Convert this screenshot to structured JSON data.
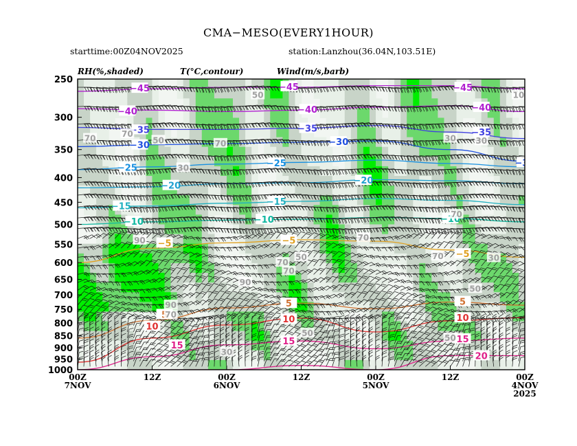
{
  "header": {
    "title": "CMA−MESO(EVERY1HOUR)",
    "starttime": "starttime:00Z04NOV2025",
    "station": "station:Lanzhou(36.04N,103.51E)"
  },
  "chart_data": {
    "type": "heatmap",
    "legend": {
      "rh": "RH(%,shaded)",
      "temp": "T(°C,contour)",
      "wind": "Wind(m/s,barb)"
    },
    "y_axis": {
      "scale": "log-pressure",
      "ylim": [
        1000,
        250
      ],
      "ticks": [
        "250",
        "300",
        "350",
        "400",
        "450",
        "500",
        "550",
        "600",
        "650",
        "700",
        "750",
        "800",
        "850",
        "900",
        "950",
        "1000"
      ]
    },
    "x_axis": {
      "direction": "time decreasing to the right",
      "range_hours": [
        72,
        0
      ],
      "ticks": [
        {
          "h": 72,
          "line1": "00Z",
          "line2": "7NOV",
          "line3": ""
        },
        {
          "h": 60,
          "line1": "12Z",
          "line2": "",
          "line3": ""
        },
        {
          "h": 48,
          "line1": "00Z",
          "line2": "6NOV",
          "line3": ""
        },
        {
          "h": 36,
          "line1": "12Z",
          "line2": "",
          "line3": ""
        },
        {
          "h": 24,
          "line1": "00Z",
          "line2": "5NOV",
          "line3": ""
        },
        {
          "h": 12,
          "line1": "12Z",
          "line2": "",
          "line3": ""
        },
        {
          "h": 0,
          "line1": "00Z",
          "line2": "4NOV",
          "line3": "2025"
        }
      ]
    },
    "rh_shading": {
      "levels": [
        30,
        50,
        70,
        90
      ],
      "colors": [
        "#ffffff",
        "#e8f0e8",
        "#c8d4c8",
        "#6cd86c",
        "#00ee00"
      ]
    },
    "temperature_contours": [
      {
        "value": -45,
        "color": "#b020d0",
        "p": [
          265,
          262,
          260,
          260,
          258,
          258,
          262
        ],
        "labels": [
          {
            "h": 62,
            "p": 261
          },
          {
            "h": 38,
            "p": 259
          },
          {
            "h": 10,
            "p": 260
          }
        ]
      },
      {
        "value": -40,
        "color": "#b020d0",
        "p": [
          288,
          290,
          292,
          290,
          286,
          284,
          292
        ],
        "labels": [
          {
            "h": 64,
            "p": 291
          },
          {
            "h": 35,
            "p": 289
          },
          {
            "h": 7,
            "p": 286
          }
        ]
      },
      {
        "value": -35,
        "color": "#4040e0",
        "p": [
          315,
          318,
          318,
          316,
          312,
          322,
          332
        ],
        "labels": [
          {
            "h": 62,
            "p": 318
          },
          {
            "h": 35,
            "p": 316
          },
          {
            "h": 7,
            "p": 322
          }
        ]
      },
      {
        "value": -30,
        "color": "#2050e0",
        "p": [
          345,
          342,
          340,
          338,
          336,
          350,
          370
        ],
        "labels": [
          {
            "h": 62,
            "p": 342
          },
          {
            "h": 30,
            "p": 337
          },
          {
            "h": 0,
            "p": 372
          }
        ]
      },
      {
        "value": -25,
        "color": "#1890e0",
        "p": [
          385,
          380,
          375,
          372,
          368,
          374,
          380
        ],
        "labels": [
          {
            "h": 64,
            "p": 381
          },
          {
            "h": 40,
            "p": 373
          }
        ]
      },
      {
        "value": -20,
        "color": "#20a0d0",
        "p": [
          420,
          418,
          412,
          410,
          404,
          406,
          412
        ],
        "labels": [
          {
            "h": 57,
            "p": 415
          },
          {
            "h": 26,
            "p": 405
          }
        ]
      },
      {
        "value": -15,
        "color": "#20b0c0",
        "p": [
          462,
          458,
          452,
          448,
          442,
          446,
          455
        ],
        "labels": [
          {
            "h": 65,
            "p": 458
          },
          {
            "h": 40,
            "p": 448
          }
        ]
      },
      {
        "value": -10,
        "color": "#10b8a0",
        "p": [
          500,
          494,
          490,
          488,
          484,
          486,
          494
        ],
        "labels": [
          {
            "h": 63,
            "p": 493
          },
          {
            "h": 42,
            "p": 488
          },
          {
            "h": 12,
            "p": 486
          }
        ]
      },
      {
        "value": -5,
        "color": "#e0a020",
        "p": [
          600,
          560,
          546,
          538,
          542,
          565,
          585
        ],
        "labels": [
          {
            "h": 58,
            "p": 546
          },
          {
            "h": 38,
            "p": 539
          },
          {
            "h": 10,
            "p": 575
          }
        ]
      },
      {
        "value": 5,
        "color": "#d07030",
        "p": [
          860,
          790,
          745,
          728,
          748,
          724,
          735
        ],
        "labels": [
          {
            "h": 58,
            "p": 768
          },
          {
            "h": 38,
            "p": 728
          },
          {
            "h": 10,
            "p": 722
          }
        ]
      },
      {
        "value": 10,
        "color": "#e03030",
        "p": [
          965,
          860,
          808,
          782,
          835,
          792,
          780
        ],
        "labels": [
          {
            "h": 60,
            "p": 812
          },
          {
            "h": 38,
            "p": 785
          },
          {
            "h": 10,
            "p": 780
          }
        ]
      },
      {
        "value": 15,
        "color": "#e0208a",
        "p": [
          1000,
          940,
          888,
          872,
          905,
          872,
          860
        ],
        "labels": [
          {
            "h": 56,
            "p": 888
          },
          {
            "h": 38,
            "p": 872
          },
          {
            "h": 10,
            "p": 863
          }
        ]
      },
      {
        "value": 20,
        "color": "#e0208a",
        "p": [
          1000,
          1000,
          1000,
          980,
          1000,
          935,
          935
        ],
        "labels": [
          {
            "h": 7,
            "p": 935
          }
        ]
      }
    ],
    "rh_labels": [
      {
        "v": "90",
        "h": 62,
        "p": 540
      },
      {
        "v": "70",
        "h": 64,
        "p": 325
      },
      {
        "v": "70",
        "h": 70,
        "p": 332
      },
      {
        "v": "50",
        "h": 59,
        "p": 335
      },
      {
        "v": "30",
        "h": 55,
        "p": 382
      },
      {
        "v": "30",
        "h": 48,
        "p": 920
      },
      {
        "v": "90",
        "h": 57,
        "p": 735
      },
      {
        "v": "70",
        "h": 57,
        "p": 770
      },
      {
        "v": "90",
        "h": 45,
        "p": 660
      },
      {
        "v": "70",
        "h": 49,
        "p": 340
      },
      {
        "v": "50",
        "h": 43,
        "p": 270
      },
      {
        "v": "70",
        "h": 39,
        "p": 600
      },
      {
        "v": "70",
        "h": 38,
        "p": 625
      },
      {
        "v": "50",
        "h": 36,
        "p": 585
      },
      {
        "v": "50",
        "h": 35,
        "p": 840
      },
      {
        "v": "70",
        "h": 26,
        "p": 533
      },
      {
        "v": "70",
        "h": 14,
        "p": 582
      },
      {
        "v": "30",
        "h": 12,
        "p": 332
      },
      {
        "v": "70",
        "h": 11,
        "p": 477
      },
      {
        "v": "30",
        "h": 7,
        "p": 336
      },
      {
        "v": "10",
        "h": 1,
        "p": 270
      },
      {
        "v": "30",
        "h": 5,
        "p": 587
      },
      {
        "v": "50",
        "h": 8,
        "p": 680
      },
      {
        "v": "50",
        "h": 12,
        "p": 860
      }
    ]
  }
}
